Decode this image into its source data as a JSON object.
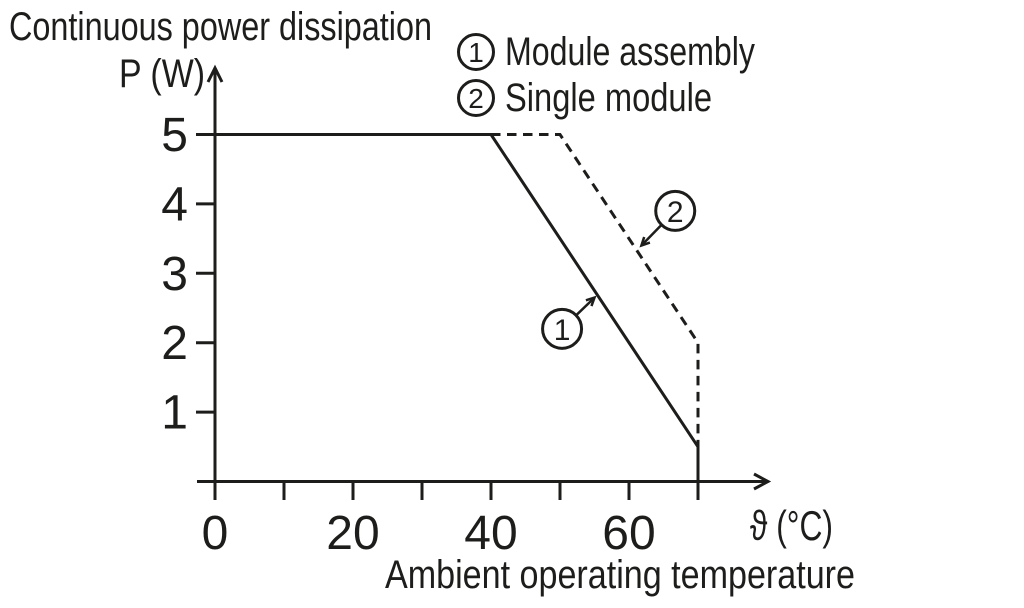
{
  "chart_data": {
    "type": "line",
    "title": "Continuous power dissipation",
    "ylabel": "P (W)",
    "xlabel": "ϑ (°C)",
    "xlabel_caption": "Ambient operating temperature",
    "grid": false,
    "legend_position": "top-right",
    "x_axis": {
      "min": 0,
      "max": 78,
      "ticks": [
        0,
        10,
        20,
        30,
        40,
        50,
        60,
        70
      ],
      "tick_labels": [
        {
          "value": 0,
          "label": "0"
        },
        {
          "value": 20,
          "label": "20"
        },
        {
          "value": 40,
          "label": "40"
        },
        {
          "value": 60,
          "label": "60"
        }
      ]
    },
    "y_axis": {
      "min": 0,
      "max": 5.9,
      "ticks": [
        1,
        2,
        3,
        4,
        5
      ],
      "tick_labels": [
        {
          "value": 5,
          "label": "5"
        },
        {
          "value": 4,
          "label": "4"
        },
        {
          "value": 3,
          "label": "3"
        },
        {
          "value": 2,
          "label": "2"
        },
        {
          "value": 1,
          "label": "1"
        }
      ]
    },
    "series": [
      {
        "marker": "1",
        "name": "Module assembly",
        "style": "solid",
        "points": [
          [
            0,
            5
          ],
          [
            40,
            5
          ],
          [
            70,
            0.5
          ],
          [
            70,
            0
          ]
        ]
      },
      {
        "marker": "2",
        "name": "Single module",
        "style": "dashed",
        "points": [
          [
            40,
            5
          ],
          [
            50,
            5
          ],
          [
            70,
            2
          ],
          [
            70,
            0.5
          ]
        ]
      }
    ],
    "annotations": [
      {
        "num": "1",
        "circle_at": [
          50.3,
          2.2
        ],
        "arrow_tip": [
          55.0,
          2.65
        ]
      },
      {
        "num": "2",
        "circle_at": [
          66.7,
          3.9
        ],
        "arrow_tip": [
          61.8,
          3.4
        ]
      }
    ],
    "colors": {
      "ink": "#1d1d1b",
      "background": "#ffffff"
    }
  }
}
